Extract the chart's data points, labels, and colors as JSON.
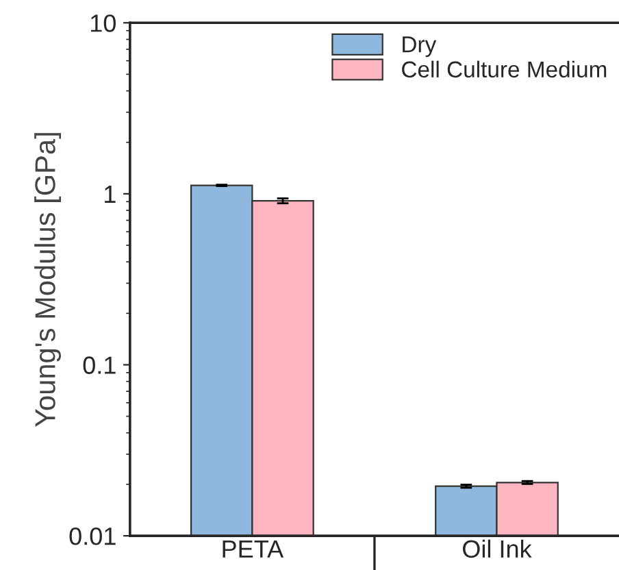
{
  "chart_data": {
    "type": "bar",
    "ylabel": "Young's Modulus [GPa]",
    "categories": [
      "PETA",
      "Oil Ink"
    ],
    "series": [
      {
        "name": "Dry",
        "color": "#8fb8de",
        "values": [
          1.12,
          0.0195
        ],
        "errors": [
          0.01,
          0.0004
        ]
      },
      {
        "name": "Cell Culture Medium",
        "color": "#ffb6c1",
        "values": [
          0.91,
          0.0205
        ],
        "errors": [
          0.03,
          0.0004
        ]
      }
    ],
    "log": true,
    "ylim": [
      0.01,
      10
    ],
    "yticks": [
      0.01,
      0.1,
      1,
      10
    ],
    "grid": false,
    "legend": "top right"
  }
}
